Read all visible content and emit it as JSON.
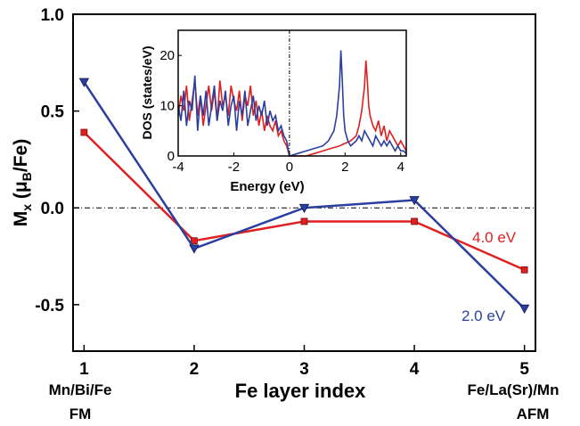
{
  "chart_data": [
    {
      "type": "line",
      "xlabel": "Fe layer index",
      "ylabel_main": "M",
      "ylabel_sub": "x",
      "ylabel_paren_open": " (μ",
      "ylabel_paren_sub": "B",
      "ylabel_paren_close": "/Fe)",
      "x": [
        1,
        2,
        3,
        4,
        5
      ],
      "xlim": [
        0.9,
        5.1
      ],
      "ylim": [
        -0.74,
        1.0
      ],
      "x_ticks": [
        "1",
        "2",
        "3",
        "4",
        "5"
      ],
      "y_ticks": [
        "1.0",
        "0.5",
        "0.0",
        "-0.5"
      ],
      "y_tick_values": [
        1.0,
        0.5,
        0.0,
        -0.5
      ],
      "zero_line": true,
      "left_annotation": [
        "Mn/Bi/Fe",
        "FM"
      ],
      "right_annotation": [
        "Fe/La(Sr)/Mn",
        "AFM"
      ],
      "series": [
        {
          "name": "4.0 eV",
          "color": "#e02020",
          "marker": "square",
          "values": [
            0.39,
            -0.17,
            -0.07,
            -0.07,
            -0.32
          ]
        },
        {
          "name": "2.0 eV",
          "color": "#2a3fa0",
          "marker": "triangle-down",
          "values": [
            0.65,
            -0.21,
            0.0,
            0.04,
            -0.52
          ]
        }
      ]
    },
    {
      "type": "line",
      "xlabel": "Energy (eV)",
      "ylabel": "DOS (states/eV)",
      "xlim": [
        -4,
        4.2
      ],
      "ylim": [
        0,
        25
      ],
      "x_ticks": [
        "-4",
        "-2",
        "0",
        "2",
        "4"
      ],
      "x_tick_values": [
        -4,
        -2,
        0,
        2,
        4
      ],
      "y_ticks": [
        "0",
        "10",
        "20"
      ],
      "y_tick_values": [
        0,
        10,
        20
      ],
      "fermi_line": 0,
      "series": [
        {
          "color": "#e02020",
          "x": [
            -4,
            -3.9,
            -3.8,
            -3.7,
            -3.6,
            -3.5,
            -3.4,
            -3.3,
            -3.2,
            -3.1,
            -3.0,
            -2.9,
            -2.8,
            -2.7,
            -2.6,
            -2.5,
            -2.4,
            -2.3,
            -2.2,
            -2.1,
            -2.0,
            -1.9,
            -1.8,
            -1.7,
            -1.6,
            -1.5,
            -1.4,
            -1.3,
            -1.2,
            -1.1,
            -1.0,
            -0.9,
            -0.8,
            -0.7,
            -0.6,
            -0.5,
            -0.4,
            -0.3,
            -0.2,
            -0.1,
            0.0,
            0.3,
            0.6,
            0.9,
            1.2,
            1.5,
            1.8,
            2.0,
            2.2,
            2.4,
            2.5,
            2.6,
            2.7,
            2.75,
            2.8,
            2.85,
            2.9,
            3.0,
            3.1,
            3.2,
            3.3,
            3.4,
            3.5,
            3.6,
            3.7,
            3.8,
            3.9,
            4.0,
            4.1,
            4.2
          ],
          "y": [
            8,
            12,
            9,
            14,
            7,
            11,
            15,
            8,
            12,
            6,
            10,
            14,
            9,
            13,
            7,
            15,
            10,
            12,
            8,
            14,
            11,
            9,
            13,
            7,
            12,
            10,
            14,
            8,
            11,
            6,
            9,
            5,
            8,
            6,
            5,
            7,
            4,
            5,
            3,
            2,
            0,
            0,
            0,
            0.5,
            1,
            1.5,
            2,
            2.5,
            3,
            4,
            6,
            9,
            14,
            19,
            15,
            10,
            8,
            6,
            5,
            7,
            4,
            6,
            3,
            5,
            4,
            3,
            2,
            3,
            2,
            1
          ]
        },
        {
          "color": "#2a3fa0",
          "x": [
            -4,
            -3.9,
            -3.8,
            -3.7,
            -3.6,
            -3.5,
            -3.4,
            -3.3,
            -3.2,
            -3.1,
            -3.0,
            -2.9,
            -2.8,
            -2.7,
            -2.6,
            -2.5,
            -2.4,
            -2.3,
            -2.2,
            -2.1,
            -2.0,
            -1.9,
            -1.8,
            -1.7,
            -1.6,
            -1.5,
            -1.4,
            -1.3,
            -1.2,
            -1.1,
            -1.0,
            -0.9,
            -0.8,
            -0.7,
            -0.6,
            -0.5,
            -0.4,
            -0.3,
            -0.2,
            -0.1,
            0.0,
            0.3,
            0.6,
            0.9,
            1.2,
            1.4,
            1.6,
            1.7,
            1.8,
            1.85,
            1.9,
            1.95,
            2.0,
            2.1,
            2.2,
            2.3,
            2.4,
            2.5,
            2.6,
            2.7,
            2.8,
            2.9,
            3.0,
            3.1,
            3.2,
            3.3,
            3.4,
            3.5,
            3.6,
            3.7,
            3.8,
            3.9,
            4.0,
            4.1,
            4.2
          ],
          "y": [
            10,
            7,
            13,
            6,
            11,
            9,
            16,
            5,
            12,
            8,
            13,
            6,
            10,
            14,
            7,
            11,
            9,
            13,
            6,
            10,
            12,
            5,
            11,
            8,
            13,
            6,
            9,
            12,
            7,
            10,
            8,
            11,
            6,
            9,
            7,
            8,
            5,
            6,
            4,
            3,
            0,
            0.5,
            1,
            1.5,
            2,
            3,
            5,
            8,
            14,
            21,
            15,
            8,
            5,
            3,
            2,
            2.5,
            3,
            4,
            3,
            5,
            4,
            3,
            2,
            4,
            3,
            2,
            3,
            2,
            3,
            2,
            1,
            2,
            1,
            1,
            0.5
          ]
        }
      ]
    }
  ]
}
